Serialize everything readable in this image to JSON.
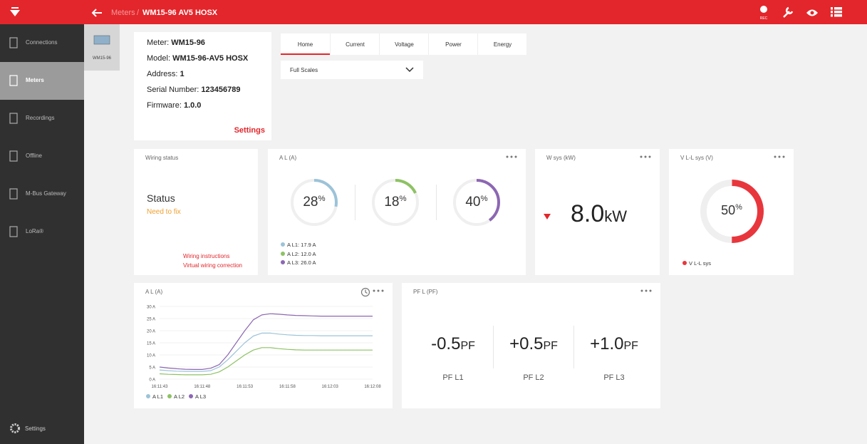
{
  "header": {
    "breadcrumb_parent": "Meters",
    "separator": "/",
    "title": "WM15-96 AV5 HOSX",
    "rec_label": "REC"
  },
  "sidebar": {
    "items": [
      "Connections",
      "Meters",
      "Recordings",
      "Offline",
      "M-Bus Gateway",
      "LoRa®"
    ],
    "active": 1,
    "settings": "Settings"
  },
  "device_tab": "WM15-96",
  "info": {
    "rows": [
      {
        "label": "Meter:",
        "value": "WM15-96"
      },
      {
        "label": "Model:",
        "value": "WM15-96-AV5 HOSX"
      },
      {
        "label": "Address:",
        "value": "1"
      },
      {
        "label": "Serial Number:",
        "value": "123456789"
      },
      {
        "label": "Firmware:",
        "value": "1.0.0"
      }
    ],
    "settings_link": "Settings"
  },
  "tabs": {
    "items": [
      "Home",
      "Current",
      "Voltage",
      "Power",
      "Energy"
    ],
    "active": 0
  },
  "dropdown": "Full Scales",
  "wiring": {
    "title": "Wiring status",
    "status_label": "Status",
    "status": "Need to fix",
    "links": [
      "Wiring instructions",
      "Virtual wiring correction"
    ]
  },
  "current_gauges": {
    "title": "A L (A)",
    "unit": "%",
    "gauges": [
      {
        "value": 28,
        "color": "#9cc3d8"
      },
      {
        "value": 18,
        "color": "#8dc263"
      },
      {
        "value": 40,
        "color": "#8c67b3"
      }
    ],
    "legend": [
      "A L1: 17.9 A",
      "A L2: 12.0 A",
      "A L3: 26.0 A"
    ]
  },
  "power": {
    "title": "W sys (kW)",
    "value": "8.0",
    "unit": "kW"
  },
  "voltage": {
    "title": "V L-L sys (V)",
    "value": 50,
    "unit": "%",
    "color": "#e8363d",
    "legend": "V L-L sys"
  },
  "line_chart": {
    "type": "line",
    "title": "A L (A)",
    "x": [
      "16:11:43",
      "16:11:44",
      "16:11:45",
      "16:11:46",
      "16:11:47",
      "16:11:48",
      "16:11:49",
      "16:11:50",
      "16:11:51",
      "16:11:52",
      "16:11:53",
      "16:11:54",
      "16:11:55",
      "16:11:56",
      "16:11:57",
      "16:11:58",
      "16:11:59",
      "16:12:00",
      "16:12:01",
      "16:12:02",
      "16:12:03",
      "16:12:04",
      "16:12:05",
      "16:12:06",
      "16:12:07",
      "16:12:08"
    ],
    "xticks": [
      "16:11:43",
      "16:11:48",
      "16:11:53",
      "16:11:58",
      "16:12:03",
      "16:12:08"
    ],
    "ylim": [
      0,
      30
    ],
    "yticks": [
      {
        "value": 0,
        "label": "0 A"
      },
      {
        "value": 5,
        "label": "5 A"
      },
      {
        "value": 10,
        "label": "10 A"
      },
      {
        "value": 15,
        "label": "15 A"
      },
      {
        "value": 20,
        "label": "20 A"
      },
      {
        "value": 25,
        "label": "25 A"
      },
      {
        "value": 30,
        "label": "30 A"
      }
    ],
    "series": [
      {
        "name": "A L1",
        "color": "#9cc3d8",
        "values": [
          3.8,
          3.5,
          3.3,
          3.2,
          3.2,
          3.2,
          3.5,
          5,
          8,
          11.5,
          15,
          17.8,
          19,
          19,
          18.6,
          18.3,
          18.1,
          18,
          18,
          17.9,
          17.9,
          17.9,
          17.9,
          17.9,
          17.9,
          17.9
        ]
      },
      {
        "name": "A L2",
        "color": "#8dc263",
        "values": [
          2.2,
          2,
          1.9,
          1.8,
          1.8,
          1.8,
          2,
          3,
          5,
          7.5,
          10,
          12,
          13,
          13,
          12.6,
          12.3,
          12.1,
          12,
          12,
          12,
          12,
          12,
          12,
          12,
          12,
          12
        ]
      },
      {
        "name": "A L3",
        "color": "#8c67b3",
        "values": [
          5,
          4.6,
          4.3,
          4.1,
          4,
          4,
          4.5,
          6,
          10,
          15,
          20,
          24.5,
          26.5,
          27,
          26.8,
          26.5,
          26.3,
          26.2,
          26.1,
          26,
          26,
          26,
          26,
          26,
          26,
          26
        ]
      }
    ]
  },
  "pf": {
    "title": "PF L (PF)",
    "items": [
      {
        "value": "-0.5",
        "unit": "PF",
        "label": "PF L1"
      },
      {
        "value": "+0.5",
        "unit": "PF",
        "label": "PF L2"
      },
      {
        "value": "+1.0",
        "unit": "PF",
        "label": "PF L3"
      }
    ]
  }
}
